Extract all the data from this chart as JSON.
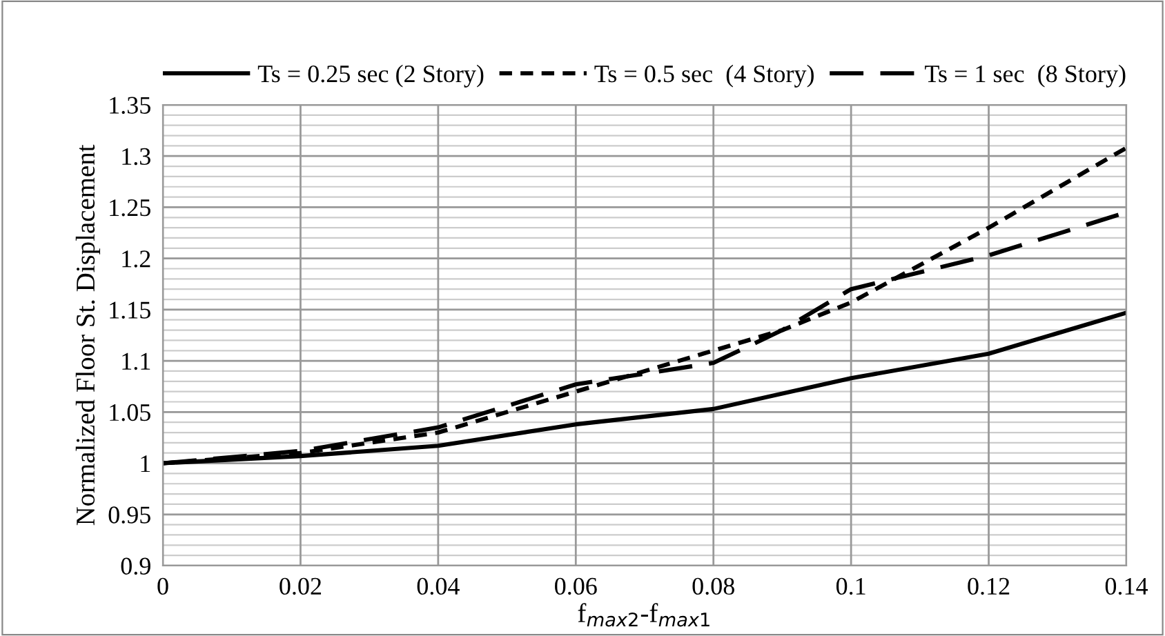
{
  "chart_data": {
    "type": "line",
    "xlabel": "f$_{max2}$-f$_{max1}$",
    "ylabel": "Normalized Floor St. Displacement",
    "xlim": [
      0,
      0.14
    ],
    "xticks": [
      0,
      0.02,
      0.04,
      0.06,
      0.08,
      {
        "value": 0.1,
        "label": "0.1"
      },
      0.12,
      0.14
    ],
    "ylim": [
      0.9,
      1.35
    ],
    "yticks": [
      0.9,
      0.95,
      {
        "value": 1.0,
        "label": "1"
      },
      1.05,
      {
        "value": 1.1,
        "label": "1.1"
      },
      1.15,
      {
        "value": 1.2,
        "label": "1.2"
      },
      1.25,
      {
        "value": 1.3,
        "label": "1.3"
      },
      1.35
    ],
    "grid": true,
    "legend": "top",
    "marker": "none",
    "series": [
      {
        "name": "Ts = 0.25 sec (2 Story)",
        "color": "#000000",
        "line_style": "solid",
        "x": [
          0,
          0.02,
          0.04,
          0.06,
          0.08,
          0.1,
          0.12,
          0.14
        ],
        "values": [
          1.0,
          1.007,
          1.017,
          1.038,
          1.053,
          1.083,
          1.107,
          1.147
        ]
      },
      {
        "name": "Ts = 0.5 sec  (4 Story)",
        "color": "#000000",
        "line_style": "dotted",
        "x": [
          0,
          0.02,
          0.04,
          0.06,
          0.08,
          0.09,
          0.1,
          0.12,
          0.14
        ],
        "values": [
          1.0,
          1.01,
          1.03,
          1.07,
          1.11,
          1.13,
          1.157,
          1.23,
          1.308
        ]
      },
      {
        "name": "Ts = 1 sec  (8 Story)",
        "color": "#000000",
        "line_style": "dashed",
        "x": [
          0,
          0.02,
          0.04,
          0.06,
          0.08,
          0.09,
          0.1,
          0.12,
          0.14
        ],
        "values": [
          1.0,
          1.012,
          1.035,
          1.077,
          1.098,
          1.13,
          1.17,
          1.203,
          1.245
        ]
      }
    ]
  }
}
